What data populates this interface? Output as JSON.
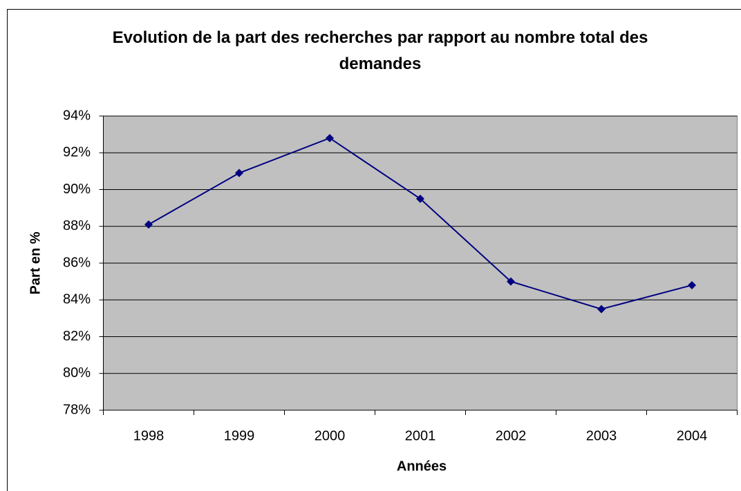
{
  "chart_data": {
    "type": "line",
    "title": "Evolution de la part des recherches par rapport au nombre total des demandes",
    "xlabel": "Années",
    "ylabel": "Part en %",
    "categories": [
      "1998",
      "1999",
      "2000",
      "2001",
      "2002",
      "2003",
      "2004"
    ],
    "series": [
      {
        "name": "Part",
        "color": "#000080",
        "values": [
          88.1,
          90.9,
          92.8,
          89.5,
          85.0,
          83.5,
          84.8
        ]
      }
    ],
    "ylim": [
      78,
      94
    ],
    "yticks": [
      {
        "value": 78,
        "label": "78%"
      },
      {
        "value": 80,
        "label": "80%"
      },
      {
        "value": 82,
        "label": "82%"
      },
      {
        "value": 84,
        "label": "84%"
      },
      {
        "value": 86,
        "label": "86%"
      },
      {
        "value": 88,
        "label": "88%"
      },
      {
        "value": 90,
        "label": "90%"
      },
      {
        "value": 92,
        "label": "92%"
      },
      {
        "value": 94,
        "label": "94%"
      }
    ],
    "grid": true,
    "plot_background": "#c0c0c0"
  }
}
